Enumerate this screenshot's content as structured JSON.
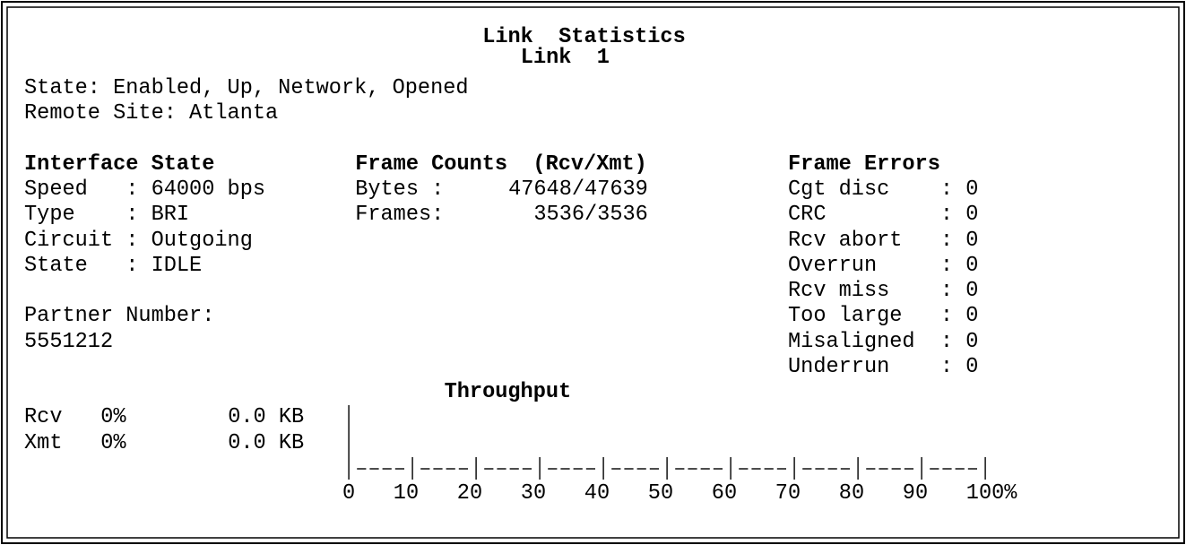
{
  "header": {
    "title": "Link  Statistics",
    "subtitle": "Link  1"
  },
  "status": {
    "state": "State: Enabled, Up, Network, Opened",
    "remote_site": "Remote Site: Atlanta"
  },
  "interface": {
    "heading": "Interface State",
    "lines": [
      "Speed   : 64000 bps",
      "Type    : BRI",
      "Circuit : Outgoing",
      "State   : IDLE"
    ],
    "partner_label": "Partner Number:",
    "partner_number": "5551212"
  },
  "frame_counts": {
    "heading": "Frame Counts  (Rcv/Xmt)",
    "rows": [
      {
        "label": "Bytes :",
        "value": "47648/47639"
      },
      {
        "label": "Frames:",
        "value": "3536/3536"
      }
    ]
  },
  "frame_errors": {
    "heading": "Frame Errors",
    "lines": [
      "Cgt disc    : 0",
      "CRC         : 0",
      "Rcv abort   : 0",
      "Overrun     : 0",
      "Rcv miss    : 0",
      "Too large   : 0",
      "Misaligned  : 0",
      "Underrun    : 0"
    ]
  },
  "throughput": {
    "heading": "Throughput",
    "rows": [
      {
        "name": "Rcv",
        "percent": "0%",
        "amount": "0.0 KB"
      },
      {
        "name": "Xmt",
        "percent": "0%",
        "amount": "0.0 KB"
      }
    ],
    "scale": [
      "0",
      "10",
      "20",
      "30",
      "40",
      "50",
      "60",
      "70",
      "80",
      "90",
      "100%"
    ]
  }
}
